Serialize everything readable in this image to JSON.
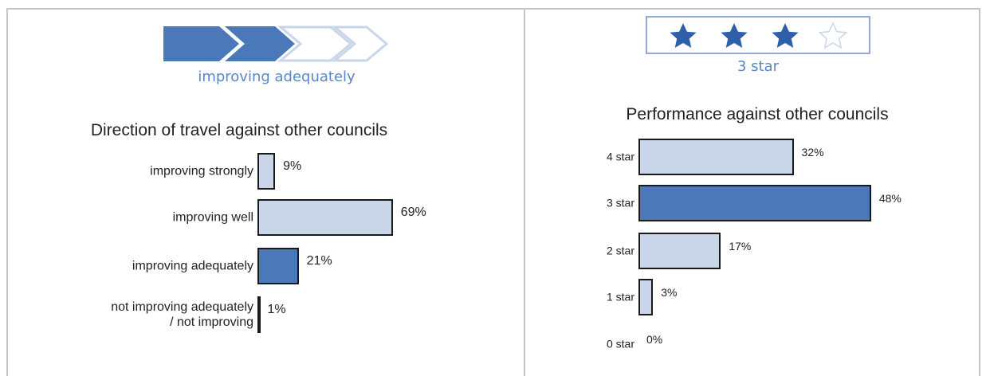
{
  "chart_data": [
    {
      "type": "bar",
      "orientation": "horizontal",
      "header": "improving adequately",
      "title": "Direction of travel against other councils",
      "categories": [
        "improving strongly",
        "improving well",
        "improving adequately",
        "not improving adequately\n/ not improving"
      ],
      "values": [
        9,
        69,
        21,
        1
      ],
      "value_labels": [
        "9%",
        "69%",
        "21%",
        "1%"
      ],
      "colors": [
        "#c9d6ea",
        "#c9d6ea",
        "#4a78b8",
        "#c9d6ea"
      ]
    },
    {
      "type": "bar",
      "orientation": "horizontal",
      "header": "3 star",
      "title": "Performance against other councils",
      "categories": [
        "4 star",
        "3 star",
        "2 star",
        "1 star",
        "0 star"
      ],
      "values": [
        32,
        48,
        17,
        3,
        0
      ],
      "value_labels": [
        "32%",
        "48%",
        "17%",
        "3%",
        "0%"
      ],
      "colors": [
        "#c9d6ea",
        "#4a78b8",
        "#c9d6ea",
        "#c9d6ea",
        "#c9d6ea"
      ]
    }
  ]
}
